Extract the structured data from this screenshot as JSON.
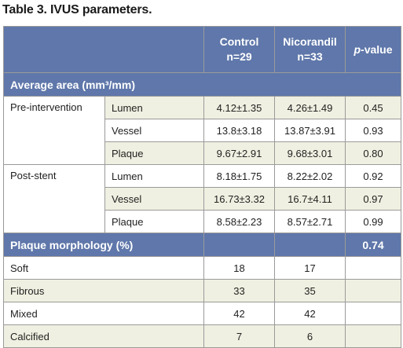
{
  "title": "Table 3. IVUS parameters.",
  "header": {
    "col1_line1": "Control",
    "col1_line2": "n=29",
    "col2_line1": "Nicorandil",
    "col2_line2": "n=33",
    "pvalue_italic": "p",
    "pvalue_rest": "-value"
  },
  "sections": {
    "average_area": {
      "label": "Average area (mm³/mm)",
      "p": ""
    },
    "plaque_morphology": {
      "label": "Plaque morphology (%)",
      "p": "0.74"
    }
  },
  "groups": {
    "pre": "Pre-intervention",
    "post": "Post-stent"
  },
  "area_rows": [
    {
      "sub": "Lumen",
      "control": "4.12±1.35",
      "nicorandil": "4.26±1.49",
      "p": "0.45"
    },
    {
      "sub": "Vessel",
      "control": "13.8±3.18",
      "nicorandil": "13.87±3.91",
      "p": "0.93"
    },
    {
      "sub": "Plaque",
      "control": "9.67±2.91",
      "nicorandil": "9.68±3.01",
      "p": "0.80"
    },
    {
      "sub": "Lumen",
      "control": "8.18±1.75",
      "nicorandil": "8.22±2.02",
      "p": "0.92"
    },
    {
      "sub": "Vessel",
      "control": "16.73±3.32",
      "nicorandil": "16.7±4.11",
      "p": "0.97"
    },
    {
      "sub": "Plaque",
      "control": "8.58±2.23",
      "nicorandil": "8.57±2.71",
      "p": "0.99"
    }
  ],
  "morphology_rows": [
    {
      "label": "Soft",
      "control": "18",
      "nicorandil": "17",
      "p": ""
    },
    {
      "label": "Fibrous",
      "control": "33",
      "nicorandil": "35",
      "p": ""
    },
    {
      "label": "Mixed",
      "control": "42",
      "nicorandil": "42",
      "p": ""
    },
    {
      "label": "Calcified",
      "control": "7",
      "nicorandil": "6",
      "p": ""
    }
  ]
}
